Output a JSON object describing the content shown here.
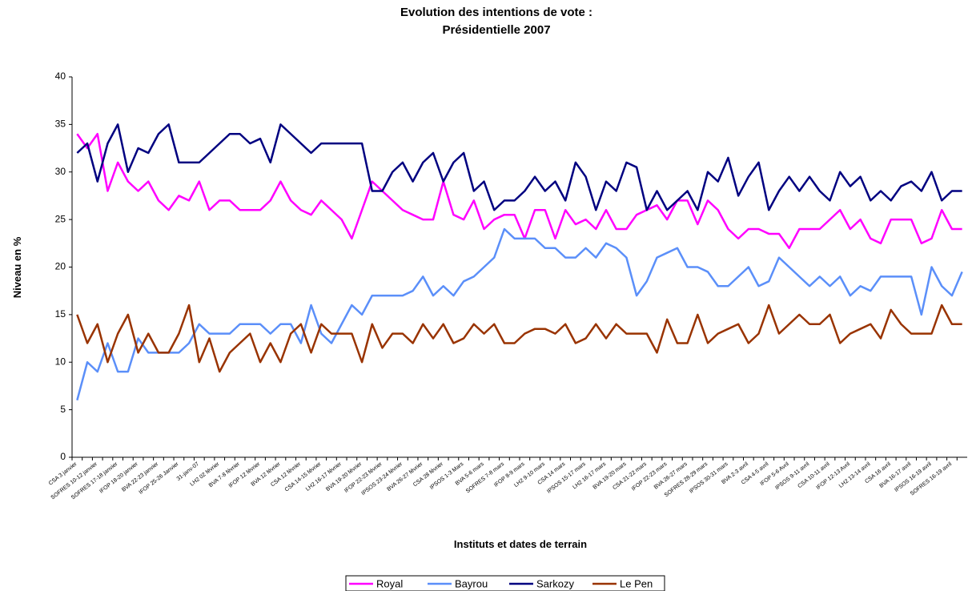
{
  "chart_data": {
    "type": "line",
    "title": "Evolution des intentions de vote :",
    "subtitle": "Présidentielle 2007",
    "x_label": "Instituts et dates de terrain",
    "y_label": "Niveau en %",
    "categories": [
      "CSA 3 janvier",
      null,
      "SOFRES 10-12 janvier",
      null,
      "SOFRES 17-18 janvier",
      null,
      "IFOP 18-20 janvier",
      null,
      "BVA 22-23 janvier",
      null,
      "IFOP 25-26 Janvier",
      null,
      "31-janv-07",
      null,
      "LH2 02 février",
      null,
      "BVA 7-8 février",
      null,
      "IFOP 12 février",
      null,
      "BVA 12 février",
      null,
      "CSA 12 février",
      null,
      "CSA 14-15 février",
      null,
      "LH2 16-17 février",
      null,
      "BVA 19-20 février",
      null,
      "IFOP 22-23 février",
      null,
      "IPSOS 23-24 février",
      null,
      "BVA 26-27 février",
      null,
      "CSA 28 février",
      null,
      "IPSOS 1-3 Mars",
      null,
      "BVA 5-6 mars",
      null,
      "SOFRES 7-8 mars",
      null,
      "IFOP 8-9 mars",
      null,
      "LH2 9-10 mars",
      null,
      "CSA 14 mars",
      null,
      "IPSOS 15-17 mars",
      null,
      "LH2 16-17 mars",
      null,
      "BVA 19-20 mars",
      null,
      "CSA 21-22 mars",
      null,
      "IFOP 22-23 mars",
      null,
      "BVA 26-27 mars",
      null,
      "SOFRES 28-29 mars",
      null,
      "IPSOS 30-31 mars",
      null,
      "BVA 2-3 avril",
      null,
      "CSA 4-5 avril",
      null,
      "IFOP 5-6 Avril",
      null,
      "IPSOS 9-11 avril",
      null,
      "CSA 10-11 avril",
      null,
      "IFOP 12-13 Avril",
      null,
      "LH2 13-14 avril",
      null,
      "CSA 16 avril",
      null,
      "BVA 16-17 avril",
      null,
      "IPSOS 16-19 avril",
      null,
      "SOFRES 16-19 avril",
      null
    ],
    "series": [
      {
        "name": "Royal",
        "color": "#ff00ff",
        "values": [
          34,
          32.5,
          34,
          28,
          31,
          29,
          28,
          29,
          27,
          26,
          27.5,
          27,
          29,
          26,
          27,
          27,
          26,
          26,
          26,
          27,
          29,
          27,
          26,
          25.5,
          27,
          26,
          25,
          23,
          26,
          29,
          28,
          27,
          26,
          25.5,
          25,
          25,
          29,
          25.5,
          25,
          27,
          24,
          25,
          25.5,
          25.5,
          23,
          26,
          26,
          23,
          26,
          24.5,
          25,
          24,
          26,
          24,
          24,
          25.5,
          26,
          26.5,
          25,
          27,
          27,
          24.5,
          27,
          26,
          24,
          23,
          24,
          24,
          23.5,
          23.5,
          22,
          24,
          24,
          24,
          25,
          26,
          24,
          25,
          23,
          22.5,
          25,
          25,
          25,
          22.5,
          23,
          26,
          24,
          24
        ]
      },
      {
        "name": "Bayrou",
        "color": "#5b8ff9",
        "values": [
          6,
          10,
          9,
          12,
          9,
          9,
          12.5,
          11,
          11,
          11,
          11,
          12,
          14,
          13,
          13,
          13,
          14,
          14,
          14,
          13,
          14,
          14,
          12,
          16,
          13,
          12,
          14,
          16,
          15,
          17,
          17,
          17,
          17,
          17.5,
          19,
          17,
          18,
          17,
          18.5,
          19,
          20,
          21,
          24,
          23,
          23,
          23,
          22,
          22,
          21,
          21,
          22,
          21,
          22.5,
          22,
          21,
          17,
          18.5,
          21,
          21.5,
          22,
          20,
          20,
          19.5,
          18,
          18,
          19,
          20,
          18,
          18.5,
          21,
          20,
          19,
          18,
          19,
          18,
          19,
          17,
          18,
          17.5,
          19,
          19,
          19,
          19,
          15,
          20,
          18,
          17,
          19.5
        ]
      },
      {
        "name": "Sarkozy",
        "color": "#000080",
        "values": [
          32,
          33,
          29,
          33,
          35,
          30,
          32.5,
          32,
          34,
          35,
          31,
          31,
          31,
          32,
          33,
          34,
          34,
          33,
          33.5,
          31,
          35,
          34,
          33,
          32,
          33,
          33,
          33,
          33,
          33,
          28,
          28,
          30,
          31,
          29,
          31,
          32,
          29,
          31,
          32,
          28,
          29,
          26,
          27,
          27,
          28,
          29.5,
          28,
          29,
          27,
          31,
          29.5,
          26,
          29,
          28,
          31,
          30.5,
          26,
          28,
          26,
          27,
          28,
          26,
          30,
          29,
          31.5,
          27.5,
          29.5,
          31,
          26,
          28,
          29.5,
          28,
          29.5,
          28,
          27,
          30,
          28.5,
          29.5,
          27,
          28,
          27,
          28.5,
          29,
          28,
          30,
          27,
          28,
          28
        ]
      },
      {
        "name": "Le Pen",
        "color": "#993300",
        "values": [
          15,
          12,
          14,
          10,
          13,
          15,
          11,
          13,
          11,
          11,
          13,
          16,
          10,
          12.5,
          9,
          11,
          12,
          13,
          10,
          12,
          10,
          13,
          14,
          11,
          14,
          13,
          13,
          13,
          10,
          14,
          11.5,
          13,
          13,
          12,
          14,
          12.5,
          14,
          12,
          12.5,
          14,
          13,
          14,
          12,
          12,
          13,
          13.5,
          13.5,
          13,
          14,
          12,
          12.5,
          14,
          12.5,
          14,
          13,
          13,
          13,
          11,
          14.5,
          12,
          12,
          15,
          12,
          13,
          13.5,
          14,
          12,
          13,
          16,
          13,
          14,
          15,
          14,
          14,
          15,
          12,
          13,
          13.5,
          14,
          12.5,
          15.5,
          14,
          13,
          13,
          13,
          16,
          14,
          14
        ]
      }
    ],
    "ylim": [
      0,
      40
    ],
    "yticks": [
      0,
      5,
      10,
      15,
      20,
      25,
      30,
      35,
      40
    ],
    "grid": false,
    "legend": "bottom"
  }
}
